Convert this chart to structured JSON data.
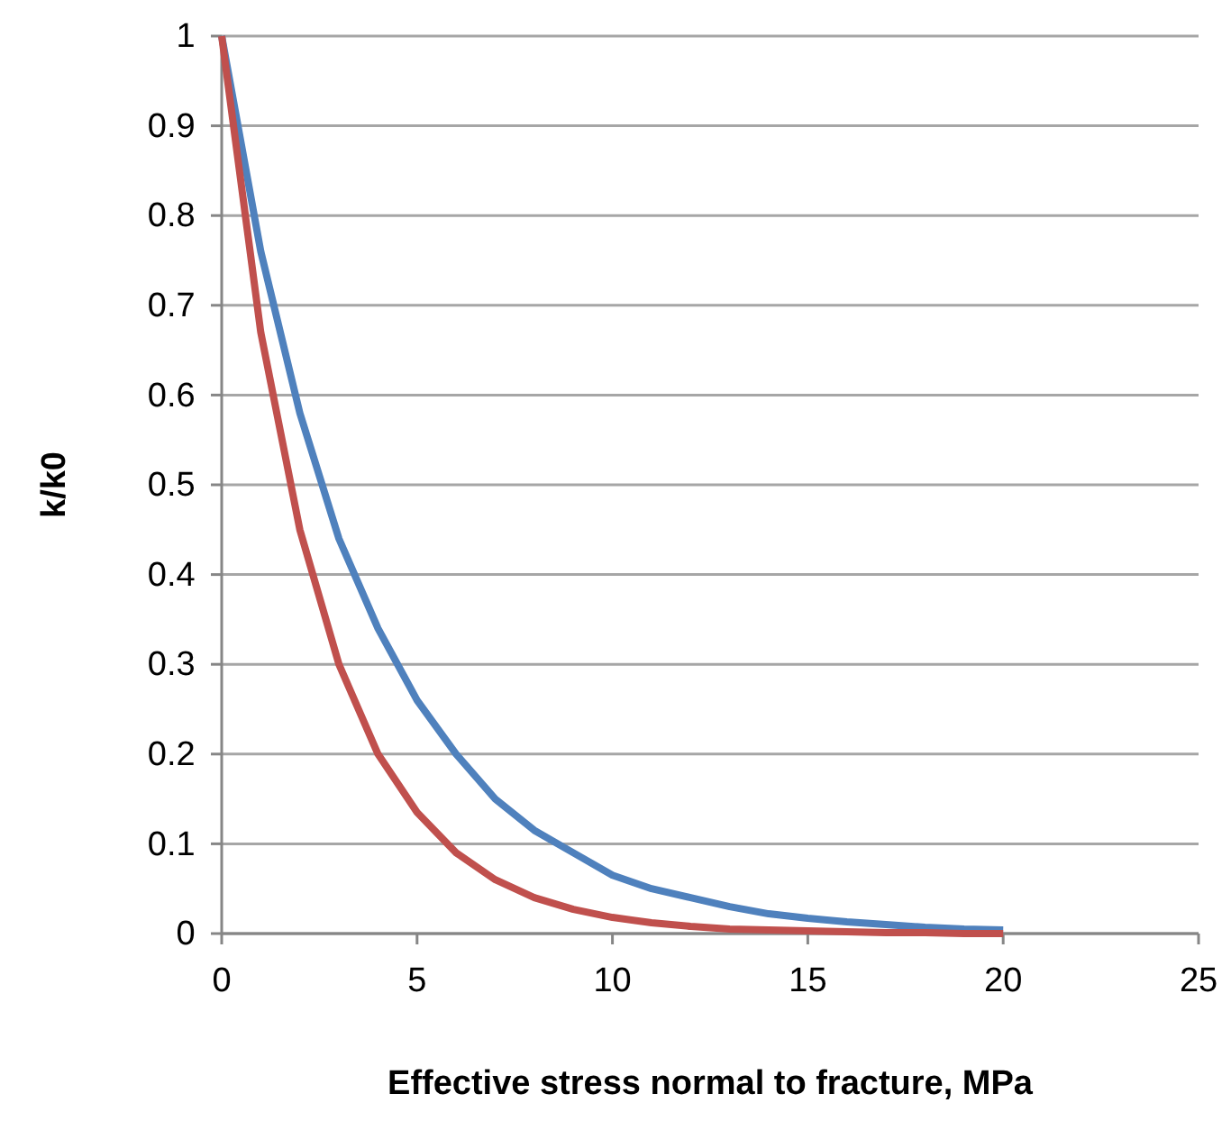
{
  "chart_data": {
    "type": "line",
    "xlabel": "Effective stress normal to fracture, MPa",
    "ylabel": "k/k0",
    "x": [
      0,
      1,
      2,
      3,
      4,
      5,
      6,
      7,
      8,
      9,
      10,
      11,
      12,
      13,
      14,
      15,
      16,
      17,
      18,
      19,
      20
    ],
    "series": [
      {
        "color": "#4f81bd",
        "values": [
          1,
          0.76,
          0.58,
          0.44,
          0.34,
          0.26,
          0.2,
          0.15,
          0.115,
          0.09,
          0.065,
          0.05,
          0.04,
          0.03,
          0.022,
          0.017,
          0.013,
          0.01,
          0.007,
          0.005,
          0.004
        ]
      },
      {
        "color": "#c0504d",
        "values": [
          1,
          0.67,
          0.45,
          0.3,
          0.2,
          0.135,
          0.09,
          0.06,
          0.04,
          0.027,
          0.018,
          0.012,
          0.008,
          0.005,
          0.004,
          0.003,
          0.002,
          0.001,
          0.001,
          0,
          0
        ]
      }
    ],
    "xlim": [
      0,
      25
    ],
    "xticks": [
      0,
      5,
      10,
      15,
      20,
      25
    ],
    "ylim": [
      0,
      1
    ],
    "yticks": [
      0,
      0.1,
      0.2,
      0.3,
      0.4,
      0.5,
      0.6,
      0.7,
      0.8,
      0.9,
      1
    ],
    "grid": "y",
    "marker": "none",
    "line_style": "solid"
  }
}
